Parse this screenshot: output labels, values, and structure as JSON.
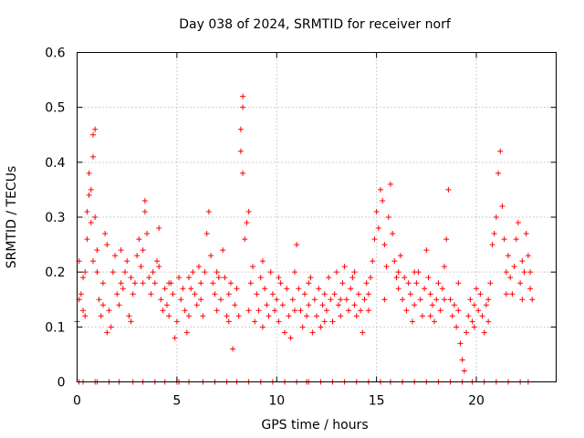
{
  "chart_data": {
    "type": "scatter",
    "title": "Day 038 of 2024, SRMTID for receiver norf",
    "xlabel": "GPS time / hours",
    "ylabel": "SRMTID / TECUs",
    "xlim": [
      0,
      24
    ],
    "ylim": [
      0,
      0.6
    ],
    "xticks": [
      0,
      5,
      10,
      15,
      20
    ],
    "xtick_labels": [
      "0",
      "5",
      "10",
      "15",
      "20"
    ],
    "yticks": [
      0,
      0.1,
      0.2,
      0.3,
      0.4,
      0.5,
      0.6
    ],
    "ytick_labels": [
      "0",
      "0.1",
      "0.2",
      "0.3",
      "0.4",
      "0.5",
      "0.6"
    ],
    "grid": true,
    "marker": "plus",
    "series": [
      {
        "name": "SRMTID",
        "color": "#ff0000",
        "points": [
          [
            0.0,
            0.11
          ],
          [
            0.1,
            0.15
          ],
          [
            0.1,
            0.22
          ],
          [
            0.2,
            0.16
          ],
          [
            0.3,
            0.19
          ],
          [
            0.3,
            0.13
          ],
          [
            0.4,
            0.2
          ],
          [
            0.5,
            0.26
          ],
          [
            0.5,
            0.31
          ],
          [
            0.6,
            0.34
          ],
          [
            0.6,
            0.38
          ],
          [
            0.7,
            0.35
          ],
          [
            0.7,
            0.29
          ],
          [
            0.8,
            0.41
          ],
          [
            0.8,
            0.45
          ],
          [
            0.9,
            0.46
          ],
          [
            0.9,
            0.3
          ],
          [
            1.0,
            0.24
          ],
          [
            1.0,
            0.2
          ],
          [
            1.1,
            0.15
          ],
          [
            1.2,
            0.12
          ],
          [
            1.3,
            0.18
          ],
          [
            1.4,
            0.27
          ],
          [
            1.5,
            0.25
          ],
          [
            1.5,
            0.09
          ],
          [
            1.6,
            0.13
          ],
          [
            1.7,
            0.1
          ],
          [
            1.8,
            0.2
          ],
          [
            1.9,
            0.23
          ],
          [
            2.0,
            0.16
          ],
          [
            2.1,
            0.14
          ],
          [
            2.2,
            0.18
          ],
          [
            2.3,
            0.17
          ],
          [
            2.4,
            0.2
          ],
          [
            2.5,
            0.22
          ],
          [
            2.6,
            0.12
          ],
          [
            2.7,
            0.19
          ],
          [
            2.8,
            0.16
          ],
          [
            2.9,
            0.18
          ],
          [
            3.0,
            0.23
          ],
          [
            3.1,
            0.26
          ],
          [
            3.2,
            0.21
          ],
          [
            3.3,
            0.24
          ],
          [
            3.4,
            0.31
          ],
          [
            3.4,
            0.33
          ],
          [
            3.5,
            0.27
          ],
          [
            3.6,
            0.19
          ],
          [
            3.7,
            0.16
          ],
          [
            3.8,
            0.2
          ],
          [
            3.9,
            0.18
          ],
          [
            4.0,
            0.22
          ],
          [
            4.1,
            0.28
          ],
          [
            4.2,
            0.15
          ],
          [
            4.3,
            0.13
          ],
          [
            4.4,
            0.17
          ],
          [
            4.5,
            0.14
          ],
          [
            4.6,
            0.12
          ],
          [
            4.7,
            0.18
          ],
          [
            4.8,
            0.16
          ],
          [
            4.9,
            0.08
          ],
          [
            5.0,
            0.11
          ],
          [
            5.1,
            0.19
          ],
          [
            5.2,
            0.15
          ],
          [
            5.3,
            0.17
          ],
          [
            5.4,
            0.13
          ],
          [
            5.5,
            0.09
          ],
          [
            5.6,
            0.12
          ],
          [
            5.7,
            0.17
          ],
          [
            5.8,
            0.2
          ],
          [
            5.9,
            0.16
          ],
          [
            6.0,
            0.14
          ],
          [
            6.1,
            0.21
          ],
          [
            6.2,
            0.18
          ],
          [
            6.3,
            0.12
          ],
          [
            6.4,
            0.2
          ],
          [
            6.5,
            0.27
          ],
          [
            6.6,
            0.31
          ],
          [
            6.7,
            0.23
          ],
          [
            6.8,
            0.18
          ],
          [
            6.9,
            0.16
          ],
          [
            7.0,
            0.13
          ],
          [
            7.1,
            0.19
          ],
          [
            7.2,
            0.15
          ],
          [
            7.3,
            0.24
          ],
          [
            7.4,
            0.19
          ],
          [
            7.5,
            0.12
          ],
          [
            7.6,
            0.16
          ],
          [
            7.7,
            0.18
          ],
          [
            7.8,
            0.06
          ],
          [
            7.9,
            0.14
          ],
          [
            8.0,
            0.17
          ],
          [
            8.1,
            0.12
          ],
          [
            8.2,
            0.42
          ],
          [
            8.2,
            0.46
          ],
          [
            8.3,
            0.5
          ],
          [
            8.3,
            0.52
          ],
          [
            8.3,
            0.38
          ],
          [
            8.4,
            0.26
          ],
          [
            8.5,
            0.29
          ],
          [
            8.6,
            0.31
          ],
          [
            8.7,
            0.18
          ],
          [
            8.8,
            0.21
          ],
          [
            8.9,
            0.11
          ],
          [
            9.0,
            0.16
          ],
          [
            9.1,
            0.13
          ],
          [
            9.2,
            0.19
          ],
          [
            9.3,
            0.22
          ],
          [
            9.4,
            0.17
          ],
          [
            9.5,
            0.14
          ],
          [
            9.6,
            0.12
          ],
          [
            9.7,
            0.2
          ],
          [
            9.8,
            0.16
          ],
          [
            9.9,
            0.13
          ],
          [
            10.0,
            0.15
          ],
          [
            10.1,
            0.11
          ],
          [
            10.2,
            0.18
          ],
          [
            10.3,
            0.14
          ],
          [
            10.4,
            0.09
          ],
          [
            10.5,
            0.17
          ],
          [
            10.6,
            0.12
          ],
          [
            10.7,
            0.08
          ],
          [
            10.8,
            0.15
          ],
          [
            10.9,
            0.2
          ],
          [
            11.0,
            0.25
          ],
          [
            11.1,
            0.17
          ],
          [
            11.2,
            0.13
          ],
          [
            11.3,
            0.1
          ],
          [
            11.4,
            0.16
          ],
          [
            11.5,
            0.12
          ],
          [
            11.6,
            0.14
          ],
          [
            11.7,
            0.19
          ],
          [
            11.8,
            0.09
          ],
          [
            11.9,
            0.15
          ],
          [
            12.0,
            0.12
          ],
          [
            12.1,
            0.17
          ],
          [
            12.2,
            0.1
          ],
          [
            12.3,
            0.14
          ],
          [
            12.4,
            0.16
          ],
          [
            12.5,
            0.13
          ],
          [
            12.6,
            0.19
          ],
          [
            12.7,
            0.15
          ],
          [
            12.8,
            0.11
          ],
          [
            12.9,
            0.16
          ],
          [
            13.0,
            0.2
          ],
          [
            13.1,
            0.14
          ],
          [
            13.2,
            0.12
          ],
          [
            13.3,
            0.18
          ],
          [
            13.4,
            0.21
          ],
          [
            13.5,
            0.15
          ],
          [
            13.6,
            0.13
          ],
          [
            13.7,
            0.17
          ],
          [
            13.8,
            0.19
          ],
          [
            13.9,
            0.14
          ],
          [
            14.0,
            0.12
          ],
          [
            14.1,
            0.16
          ],
          [
            14.2,
            0.13
          ],
          [
            14.3,
            0.09
          ],
          [
            14.4,
            0.15
          ],
          [
            14.5,
            0.18
          ],
          [
            14.6,
            0.16
          ],
          [
            14.7,
            0.19
          ],
          [
            14.8,
            0.22
          ],
          [
            14.9,
            0.26
          ],
          [
            15.0,
            0.31
          ],
          [
            15.1,
            0.28
          ],
          [
            15.2,
            0.35
          ],
          [
            15.3,
            0.33
          ],
          [
            15.4,
            0.25
          ],
          [
            15.5,
            0.21
          ],
          [
            15.6,
            0.3
          ],
          [
            15.7,
            0.36
          ],
          [
            15.8,
            0.27
          ],
          [
            15.9,
            0.22
          ],
          [
            16.0,
            0.19
          ],
          [
            16.1,
            0.17
          ],
          [
            16.2,
            0.23
          ],
          [
            16.3,
            0.15
          ],
          [
            16.4,
            0.19
          ],
          [
            16.5,
            0.13
          ],
          [
            16.6,
            0.18
          ],
          [
            16.7,
            0.16
          ],
          [
            16.8,
            0.11
          ],
          [
            16.9,
            0.14
          ],
          [
            17.0,
            0.18
          ],
          [
            17.1,
            0.2
          ],
          [
            17.2,
            0.15
          ],
          [
            17.3,
            0.12
          ],
          [
            17.4,
            0.17
          ],
          [
            17.5,
            0.24
          ],
          [
            17.6,
            0.19
          ],
          [
            17.7,
            0.16
          ],
          [
            17.8,
            0.14
          ],
          [
            17.9,
            0.11
          ],
          [
            18.0,
            0.15
          ],
          [
            18.1,
            0.18
          ],
          [
            18.2,
            0.13
          ],
          [
            18.3,
            0.17
          ],
          [
            18.4,
            0.21
          ],
          [
            18.5,
            0.26
          ],
          [
            18.6,
            0.35
          ],
          [
            18.7,
            0.15
          ],
          [
            18.8,
            0.12
          ],
          [
            18.9,
            0.14
          ],
          [
            19.0,
            0.1
          ],
          [
            19.1,
            0.13
          ],
          [
            19.2,
            0.07
          ],
          [
            19.3,
            0.04
          ],
          [
            19.4,
            0.02
          ],
          [
            19.5,
            0.09
          ],
          [
            19.6,
            0.12
          ],
          [
            19.7,
            0.15
          ],
          [
            19.8,
            0.11
          ],
          [
            19.9,
            0.14
          ],
          [
            20.0,
            0.17
          ],
          [
            20.1,
            0.13
          ],
          [
            20.2,
            0.16
          ],
          [
            20.3,
            0.12
          ],
          [
            20.4,
            0.09
          ],
          [
            20.5,
            0.14
          ],
          [
            20.6,
            0.11
          ],
          [
            20.7,
            0.18
          ],
          [
            20.8,
            0.25
          ],
          [
            20.9,
            0.27
          ],
          [
            21.0,
            0.3
          ],
          [
            21.1,
            0.38
          ],
          [
            21.2,
            0.42
          ],
          [
            21.3,
            0.32
          ],
          [
            21.4,
            0.26
          ],
          [
            21.5,
            0.2
          ],
          [
            21.6,
            0.23
          ],
          [
            21.7,
            0.19
          ],
          [
            21.8,
            0.16
          ],
          [
            21.9,
            0.21
          ],
          [
            22.0,
            0.26
          ],
          [
            22.1,
            0.29
          ],
          [
            22.2,
            0.18
          ],
          [
            22.3,
            0.15
          ],
          [
            22.4,
            0.2
          ],
          [
            22.5,
            0.27
          ],
          [
            22.6,
            0.23
          ],
          [
            22.7,
            0.17
          ],
          [
            22.8,
            0.15
          ],
          [
            0.4,
            0.12
          ],
          [
            0.8,
            0.22
          ],
          [
            1.3,
            0.14
          ],
          [
            2.2,
            0.24
          ],
          [
            2.7,
            0.11
          ],
          [
            3.3,
            0.18
          ],
          [
            4.1,
            0.21
          ],
          [
            4.6,
            0.18
          ],
          [
            5.6,
            0.19
          ],
          [
            6.2,
            0.15
          ],
          [
            7.0,
            0.2
          ],
          [
            7.6,
            0.11
          ],
          [
            8.6,
            0.13
          ],
          [
            9.3,
            0.1
          ],
          [
            10.1,
            0.19
          ],
          [
            10.9,
            0.13
          ],
          [
            11.6,
            0.18
          ],
          [
            12.4,
            0.11
          ],
          [
            13.2,
            0.15
          ],
          [
            13.9,
            0.2
          ],
          [
            14.6,
            0.13
          ],
          [
            15.4,
            0.15
          ],
          [
            16.1,
            0.2
          ],
          [
            16.9,
            0.2
          ],
          [
            17.7,
            0.12
          ],
          [
            18.4,
            0.15
          ],
          [
            19.1,
            0.18
          ],
          [
            19.9,
            0.1
          ],
          [
            20.6,
            0.15
          ],
          [
            21.5,
            0.16
          ],
          [
            22.3,
            0.22
          ],
          [
            22.7,
            0.2
          ]
        ]
      },
      {
        "name": "zero-level",
        "color": "#ff0000",
        "points": [
          [
            0.1,
            0
          ],
          [
            0.3,
            0
          ],
          [
            0.9,
            0
          ],
          [
            1.0,
            0
          ],
          [
            1.6,
            0
          ],
          [
            2.1,
            0
          ],
          [
            2.8,
            0
          ],
          [
            3.3,
            0
          ],
          [
            3.9,
            0
          ],
          [
            4.4,
            0
          ],
          [
            5.0,
            0
          ],
          [
            5.1,
            0
          ],
          [
            5.6,
            0
          ],
          [
            6.3,
            0
          ],
          [
            6.9,
            0
          ],
          [
            7.5,
            0
          ],
          [
            8.0,
            0
          ],
          [
            8.6,
            0
          ],
          [
            9.2,
            0
          ],
          [
            9.8,
            0
          ],
          [
            10.4,
            0
          ],
          [
            11.0,
            0
          ],
          [
            11.5,
            0
          ],
          [
            11.6,
            0
          ],
          [
            12.2,
            0
          ],
          [
            12.8,
            0
          ],
          [
            13.4,
            0
          ],
          [
            14.0,
            0
          ],
          [
            14.6,
            0
          ],
          [
            15.2,
            0
          ],
          [
            15.7,
            0
          ],
          [
            16.3,
            0
          ],
          [
            16.9,
            0
          ],
          [
            17.5,
            0
          ],
          [
            18.1,
            0
          ],
          [
            18.7,
            0
          ],
          [
            19.3,
            0
          ],
          [
            19.8,
            0
          ],
          [
            20.4,
            0
          ],
          [
            21.0,
            0
          ],
          [
            21.6,
            0
          ],
          [
            22.2,
            0
          ],
          [
            22.6,
            0
          ]
        ]
      }
    ]
  }
}
